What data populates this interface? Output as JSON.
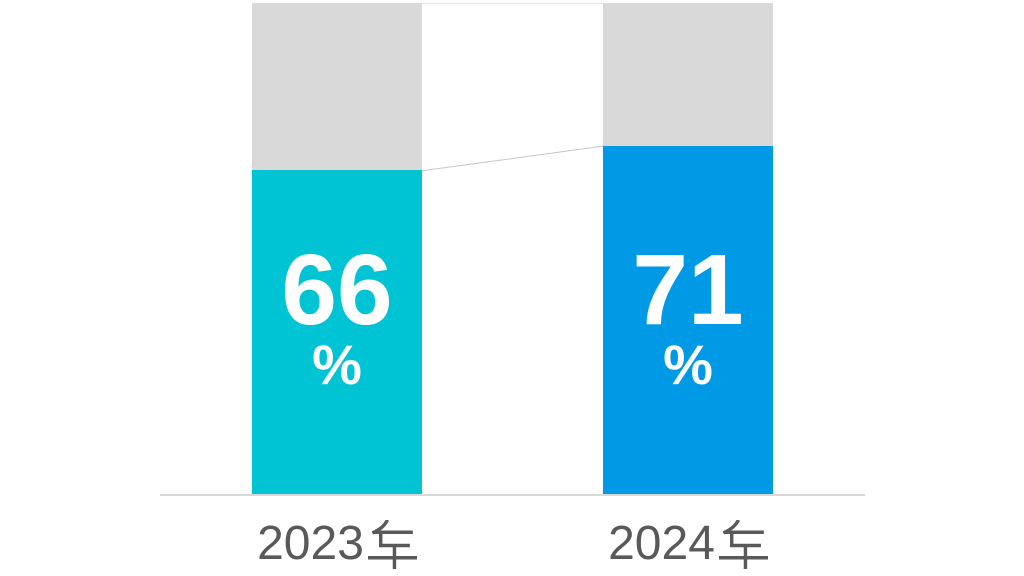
{
  "chart_data": {
    "type": "bar",
    "subtype": "100-percent-stacked-column",
    "title": "",
    "categories": [
      "2023年",
      "2024年"
    ],
    "values": [
      66,
      71
    ],
    "remainder_values": [
      34,
      29
    ],
    "unit": "%",
    "ylim": [
      0,
      100
    ],
    "grid": false,
    "legend": false,
    "data_labels": [
      "66%",
      "71%"
    ],
    "bar_colors": [
      "#00c4d3",
      "#0099e6"
    ],
    "remainder_color": "#d9d9d9",
    "connector_lines": true,
    "x_axis_line": true
  },
  "bars": [
    {
      "label": "2023年",
      "value": "66",
      "unit": "%"
    },
    {
      "label": "2024年",
      "value": "71",
      "unit": "%"
    }
  ],
  "colors": {
    "bar_2023": "#00c4d3",
    "bar_2024": "#0099e6",
    "remainder": "#d9d9d9",
    "value_text": "#ffffff",
    "category_text": "#595959",
    "axis_line": "#d8d8d8",
    "connector_top": "#e4e4e4",
    "connector_mid": "#c6c6c6",
    "background": "#ffffff"
  }
}
